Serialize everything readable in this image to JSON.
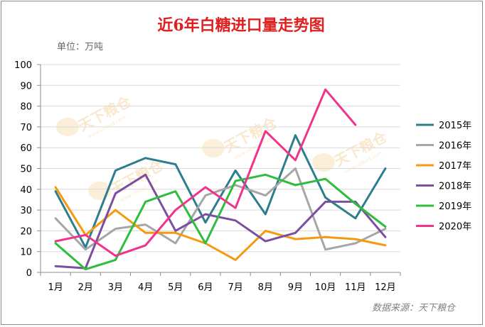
{
  "chart_data": {
    "type": "line",
    "title": "近6年白糖进口量走势图",
    "unit_label": "单位：万吨",
    "source": "数据来源：天下粮仓",
    "watermark": {
      "brand": "天下粮仓",
      "site": "www.cofeed.com"
    },
    "categories": [
      "1月",
      "2月",
      "3月",
      "4月",
      "5月",
      "6月",
      "7月",
      "8月",
      "9月",
      "10月",
      "11月",
      "12月"
    ],
    "ylim": [
      0,
      100
    ],
    "yticks": [
      0,
      10,
      20,
      30,
      40,
      50,
      60,
      70,
      80,
      90,
      100
    ],
    "grid": true,
    "legend_position": "right",
    "series": [
      {
        "name": "2015年",
        "color": "#2e7d8e",
        "values": [
          39,
          12,
          49,
          55,
          52,
          24,
          49,
          28,
          66,
          36,
          26,
          50
        ]
      },
      {
        "name": "2016年",
        "color": "#a6a6a6",
        "values": [
          26,
          11,
          21,
          23,
          14,
          37,
          42,
          37,
          50,
          11,
          14,
          21
        ]
      },
      {
        "name": "2017年",
        "color": "#f59a0f",
        "values": [
          41,
          18,
          30,
          19,
          19,
          14,
          6,
          20,
          16,
          17,
          16,
          13
        ]
      },
      {
        "name": "2018年",
        "color": "#7b4fa0",
        "values": [
          3,
          2,
          38,
          47,
          20,
          28,
          25,
          15,
          19,
          34,
          34,
          17
        ]
      },
      {
        "name": "2019年",
        "color": "#2ebd3c",
        "values": [
          14,
          1.5,
          6,
          34,
          39,
          14,
          44,
          47,
          42,
          45,
          33,
          22
        ]
      },
      {
        "name": "2020年",
        "color": "#f0348c",
        "values": [
          15,
          18,
          8,
          13,
          30,
          41,
          31,
          68,
          54,
          88,
          71,
          null
        ]
      }
    ]
  }
}
